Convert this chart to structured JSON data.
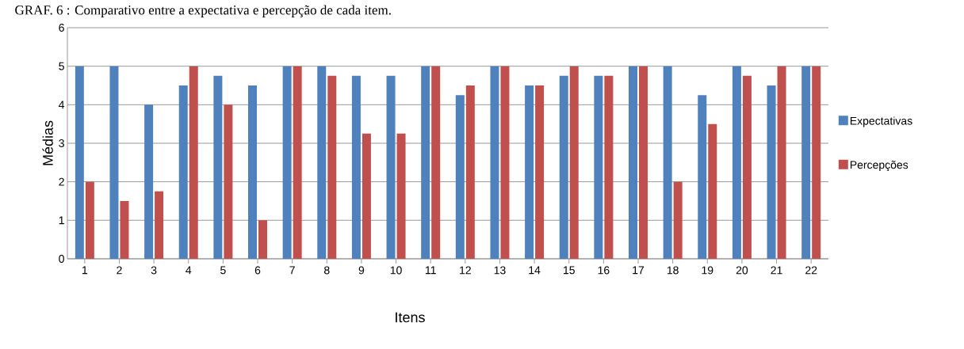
{
  "chart_data": {
    "type": "bar",
    "title": "GRAF. 6 : Comparativo entre a expectativa e percepção de cada item.",
    "xlabel": "Itens",
    "ylabel": "Médias",
    "categories": [
      "1",
      "2",
      "3",
      "4",
      "5",
      "6",
      "7",
      "8",
      "9",
      "10",
      "11",
      "12",
      "13",
      "14",
      "15",
      "16",
      "17",
      "18",
      "19",
      "20",
      "21",
      "22"
    ],
    "series": [
      {
        "name": "Expectativas",
        "color": "#4f81bd",
        "values": [
          5,
          5,
          4,
          4.5,
          4.75,
          4.5,
          5,
          5,
          4.75,
          4.75,
          5,
          4.25,
          5,
          4.5,
          4.75,
          4.75,
          5,
          5,
          4.25,
          5,
          4.5,
          5
        ]
      },
      {
        "name": "Percepções",
        "color": "#c0504d",
        "values": [
          2,
          1.5,
          1.75,
          5,
          4,
          1,
          5,
          4.75,
          3.25,
          3.25,
          5,
          4.5,
          5,
          4.5,
          5,
          4.75,
          5,
          2,
          3.5,
          4.75,
          5,
          5
        ]
      }
    ],
    "ylim": [
      0,
      6
    ],
    "yticks": [
      0,
      1,
      2,
      3,
      4,
      5,
      6
    ],
    "grid": "y",
    "legend": "right"
  }
}
